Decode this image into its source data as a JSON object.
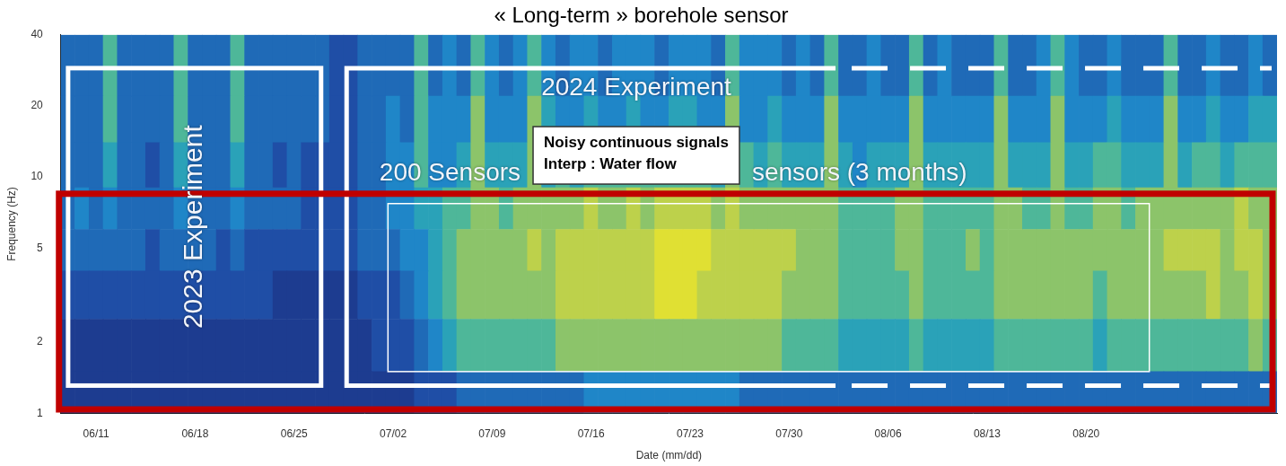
{
  "chart_data": {
    "type": "heatmap",
    "title": "« Long-term » borehole sensor",
    "x_label": "Date (mm/dd)",
    "y_label": "Frequency (Hz)",
    "categories": [
      null,
      null,
      "06/11",
      null,
      null,
      null,
      null,
      null,
      null,
      "06/18",
      null,
      null,
      null,
      null,
      null,
      null,
      "06/25",
      null,
      null,
      null,
      null,
      null,
      null,
      "07/02",
      null,
      null,
      null,
      null,
      null,
      null,
      "07/09",
      null,
      null,
      null,
      null,
      null,
      null,
      "07/16",
      null,
      null,
      null,
      null,
      null,
      null,
      "07/23",
      null,
      null,
      null,
      null,
      null,
      null,
      "07/30",
      null,
      null,
      null,
      null,
      null,
      null,
      "08/06",
      null,
      null,
      null,
      null,
      null,
      null,
      "08/13",
      null,
      null,
      null,
      null,
      null,
      null,
      "08/20",
      null,
      null,
      null,
      null,
      null,
      null,
      null,
      null,
      null,
      null,
      null,
      null,
      null
    ],
    "y_edges": [
      1,
      1.5,
      2.5,
      4,
      6,
      9,
      14,
      22,
      40
    ],
    "cells": [
      [
        1,
        1,
        1,
        1,
        1,
        1,
        1,
        1,
        1,
        1,
        1,
        1,
        1,
        1,
        1,
        1,
        1,
        1,
        1,
        1,
        1,
        1,
        1,
        1,
        1,
        2,
        2,
        2,
        3,
        3,
        3,
        3,
        3,
        3,
        3,
        3,
        3,
        4,
        4,
        4,
        4,
        4,
        4,
        4,
        4,
        4,
        4,
        4,
        3,
        3,
        3,
        3,
        3,
        3,
        3,
        3,
        3,
        3,
        3,
        3,
        3,
        3,
        3,
        3,
        3,
        3,
        3,
        3,
        3,
        3,
        3,
        3,
        3,
        3,
        3,
        3,
        3,
        3,
        3,
        3,
        3,
        3,
        3,
        3,
        3,
        3
      ],
      [
        1,
        1,
        1,
        1,
        1,
        1,
        1,
        1,
        1,
        1,
        1,
        1,
        1,
        1,
        1,
        1,
        1,
        1,
        1,
        1,
        1,
        1,
        2,
        2,
        2,
        3,
        4,
        5,
        6,
        6,
        6,
        6,
        6,
        6,
        6,
        7,
        7,
        7,
        7,
        7,
        7,
        7,
        7,
        7,
        7,
        7,
        7,
        7,
        7,
        7,
        7,
        6,
        6,
        6,
        6,
        5,
        5,
        5,
        5,
        5,
        6,
        5,
        5,
        5,
        5,
        5,
        6,
        6,
        6,
        6,
        6,
        6,
        6,
        5,
        6,
        6,
        6,
        6,
        6,
        6,
        6,
        6,
        6,
        6,
        7,
        6
      ],
      [
        2,
        2,
        2,
        2,
        2,
        2,
        2,
        2,
        2,
        2,
        2,
        2,
        2,
        2,
        2,
        1,
        1,
        1,
        1,
        1,
        1,
        2,
        2,
        2,
        3,
        4,
        5,
        6,
        7,
        7,
        7,
        7,
        7,
        7,
        7,
        8,
        8,
        8,
        8,
        8,
        8,
        8,
        9,
        9,
        9,
        8,
        8,
        8,
        8,
        8,
        8,
        7,
        7,
        7,
        7,
        6,
        6,
        6,
        6,
        6,
        7,
        6,
        6,
        6,
        6,
        6,
        7,
        7,
        7,
        7,
        7,
        7,
        7,
        6,
        7,
        7,
        7,
        7,
        7,
        7,
        7,
        8,
        7,
        7,
        8,
        7
      ],
      [
        3,
        3,
        3,
        3,
        3,
        3,
        2,
        3,
        3,
        3,
        3,
        2,
        3,
        2,
        2,
        2,
        2,
        2,
        2,
        2,
        2,
        3,
        3,
        3,
        4,
        4,
        5,
        6,
        7,
        7,
        7,
        7,
        7,
        8,
        7,
        8,
        8,
        8,
        8,
        8,
        8,
        8,
        9,
        9,
        9,
        9,
        8,
        8,
        8,
        8,
        8,
        8,
        7,
        7,
        7,
        6,
        6,
        6,
        6,
        7,
        7,
        6,
        6,
        6,
        7,
        6,
        7,
        7,
        7,
        7,
        7,
        7,
        7,
        7,
        7,
        7,
        7,
        7,
        8,
        8,
        8,
        8,
        7,
        8,
        8,
        7
      ],
      [
        3,
        4,
        3,
        4,
        3,
        3,
        3,
        3,
        4,
        3,
        3,
        3,
        4,
        3,
        3,
        3,
        3,
        2,
        2,
        2,
        2,
        3,
        3,
        4,
        4,
        5,
        5,
        6,
        6,
        7,
        7,
        6,
        7,
        7,
        7,
        7,
        7,
        8,
        7,
        7,
        8,
        7,
        8,
        8,
        8,
        8,
        7,
        8,
        7,
        7,
        7,
        7,
        7,
        7,
        7,
        6,
        6,
        6,
        6,
        7,
        7,
        6,
        6,
        6,
        6,
        6,
        7,
        7,
        6,
        6,
        7,
        6,
        6,
        7,
        7,
        6,
        7,
        7,
        7,
        7,
        7,
        7,
        7,
        8,
        7,
        7
      ],
      [
        3,
        3,
        3,
        5,
        3,
        3,
        2,
        3,
        5,
        3,
        3,
        3,
        5,
        3,
        3,
        2,
        3,
        2,
        2,
        2,
        2,
        3,
        3,
        4,
        4,
        6,
        4,
        4,
        5,
        7,
        5,
        5,
        5,
        7,
        5,
        6,
        5,
        6,
        6,
        6,
        6,
        6,
        6,
        6,
        6,
        6,
        5,
        7,
        6,
        5,
        6,
        5,
        5,
        5,
        7,
        5,
        4,
        5,
        5,
        5,
        7,
        5,
        5,
        5,
        5,
        5,
        7,
        5,
        5,
        5,
        7,
        5,
        5,
        6,
        6,
        5,
        5,
        5,
        7,
        5,
        6,
        6,
        5,
        6,
        6,
        6
      ],
      [
        3,
        3,
        3,
        6,
        3,
        3,
        3,
        3,
        6,
        3,
        3,
        3,
        6,
        3,
        3,
        3,
        3,
        3,
        3,
        2,
        2,
        3,
        3,
        4,
        3,
        6,
        4,
        4,
        4,
        7,
        4,
        4,
        4,
        7,
        5,
        4,
        4,
        5,
        4,
        4,
        5,
        4,
        4,
        5,
        5,
        4,
        4,
        7,
        4,
        4,
        5,
        4,
        4,
        4,
        7,
        4,
        4,
        4,
        4,
        4,
        7,
        4,
        4,
        4,
        4,
        4,
        7,
        4,
        4,
        4,
        7,
        4,
        4,
        4,
        5,
        4,
        4,
        4,
        7,
        4,
        4,
        5,
        4,
        4,
        5,
        5
      ],
      [
        3,
        3,
        3,
        6,
        3,
        3,
        3,
        3,
        6,
        3,
        3,
        3,
        6,
        3,
        3,
        3,
        3,
        3,
        3,
        2,
        2,
        3,
        3,
        3,
        3,
        6,
        3,
        4,
        3,
        6,
        4,
        3,
        4,
        6,
        4,
        3,
        4,
        4,
        3,
        4,
        4,
        4,
        3,
        4,
        4,
        4,
        3,
        6,
        4,
        4,
        4,
        3,
        4,
        3,
        6,
        3,
        3,
        4,
        3,
        3,
        6,
        3,
        4,
        3,
        3,
        3,
        6,
        3,
        3,
        4,
        6,
        4,
        3,
        3,
        4,
        3,
        3,
        3,
        6,
        3,
        3,
        4,
        3,
        3,
        4,
        3
      ]
    ],
    "zlim": [
      0,
      10
    ],
    "ylim": [
      1,
      40
    ],
    "yticks": [
      1,
      2,
      5,
      10,
      20,
      40
    ],
    "log": "y",
    "grid": false,
    "annotations": {
      "experiment_2023": "2023 Experiment",
      "experiment_2024": "2024 Experiment",
      "sensors_left": "200 Sensors",
      "sensors_right": "sensors (3 months)",
      "box_lines": [
        "Noisy continuous signals",
        "Interp : Water flow"
      ]
    }
  }
}
